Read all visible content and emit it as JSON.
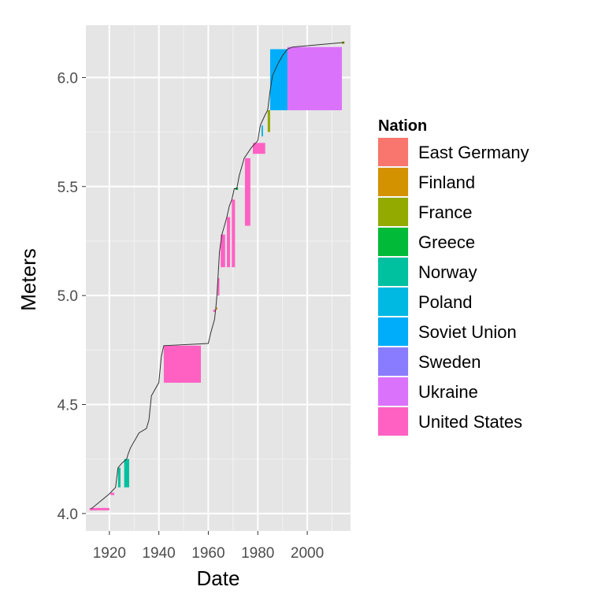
{
  "chart_data": {
    "type": "line",
    "xlabel": "Date",
    "ylabel": "Meters",
    "xlim": [
      1910.5,
      2017.5
    ],
    "ylim": [
      3.92,
      6.24
    ],
    "x_ticks": [
      1920,
      1940,
      1960,
      1980,
      2000
    ],
    "y_ticks": [
      4.0,
      4.5,
      5.0,
      5.5,
      6.0
    ],
    "grid": true,
    "legend_position": "right",
    "legend": {
      "title": "Nation",
      "entries": [
        {
          "name": "East Germany",
          "color": "#F8766D"
        },
        {
          "name": "Finland",
          "color": "#D39200"
        },
        {
          "name": "France",
          "color": "#93AA00"
        },
        {
          "name": "Greece",
          "color": "#00BA38"
        },
        {
          "name": "Norway",
          "color": "#00C19F"
        },
        {
          "name": "Poland",
          "color": "#00B9E3"
        },
        {
          "name": "Soviet Union",
          "color": "#00ADFA"
        },
        {
          "name": "Sweden",
          "color": "#8A7CFF"
        },
        {
          "name": "Ukraine",
          "color": "#DB72FB"
        },
        {
          "name": "United States",
          "color": "#FF61C3"
        }
      ]
    },
    "line": {
      "color": "#333333",
      "points": [
        [
          1912.5,
          4.02
        ],
        [
          1920.0,
          4.09
        ],
        [
          1922.5,
          4.12
        ],
        [
          1923.5,
          4.21
        ],
        [
          1925.0,
          4.23
        ],
        [
          1927.0,
          4.25
        ],
        [
          1927.5,
          4.27
        ],
        [
          1928.5,
          4.3
        ],
        [
          1932.0,
          4.37
        ],
        [
          1935.0,
          4.39
        ],
        [
          1936.0,
          4.43
        ],
        [
          1937.0,
          4.54
        ],
        [
          1940.0,
          4.6
        ],
        [
          1941.0,
          4.72
        ],
        [
          1942.0,
          4.77
        ],
        [
          1960.0,
          4.78
        ],
        [
          1961.0,
          4.83
        ],
        [
          1962.5,
          4.89
        ],
        [
          1963.0,
          4.94
        ],
        [
          1963.5,
          5.0
        ],
        [
          1964.5,
          5.2
        ],
        [
          1965.5,
          5.28
        ],
        [
          1966.5,
          5.32
        ],
        [
          1967.5,
          5.36
        ],
        [
          1968.5,
          5.41
        ],
        [
          1969.5,
          5.44
        ],
        [
          1970.5,
          5.49
        ],
        [
          1971.5,
          5.49
        ],
        [
          1972.5,
          5.55
        ],
        [
          1974.5,
          5.63
        ],
        [
          1977.5,
          5.68
        ],
        [
          1980.0,
          5.71
        ],
        [
          1981.0,
          5.78
        ],
        [
          1983.0,
          5.83
        ],
        [
          1984.0,
          5.85
        ],
        [
          1985.0,
          5.94
        ],
        [
          1986.0,
          6.01
        ],
        [
          1988.0,
          6.06
        ],
        [
          1990.0,
          6.1
        ],
        [
          1992.0,
          6.13
        ],
        [
          1994.0,
          6.14
        ],
        [
          2014.0,
          6.16
        ],
        [
          2015.0,
          6.16
        ]
      ]
    },
    "series": [
      {
        "nation": "United States",
        "segments": [
          [
            1912.0,
            1920.0,
            4.02,
            4.02
          ],
          [
            1920.5,
            1922.0,
            4.09,
            4.09
          ],
          [
            1942.0,
            1957.0,
            4.6,
            4.77
          ],
          [
            1962.0,
            1963.0,
            4.92,
            4.93
          ],
          [
            1963.8,
            1964.5,
            5.0,
            5.08
          ],
          [
            1965.0,
            1966.8,
            5.13,
            5.28
          ],
          [
            1967.5,
            1968.8,
            5.13,
            5.36
          ],
          [
            1969.5,
            1970.8,
            5.13,
            5.44
          ],
          [
            1974.8,
            1977.0,
            5.32,
            5.63
          ],
          [
            1978.0,
            1983.0,
            5.65,
            5.7
          ]
        ]
      },
      {
        "nation": "Norway",
        "segments": [
          [
            1923.5,
            1924.5,
            4.12,
            4.21
          ],
          [
            1926.0,
            1928.0,
            4.12,
            4.25
          ]
        ]
      },
      {
        "nation": "Finland",
        "segments": [
          [
            1963.0,
            1963.5,
            4.93,
            4.94
          ]
        ]
      },
      {
        "nation": "Greece",
        "segments": [
          [
            1971.0,
            1972.0,
            5.49,
            5.49
          ]
        ]
      },
      {
        "nation": "Poland",
        "segments": [
          [
            1981.5,
            1982.0,
            5.73,
            5.78
          ]
        ]
      },
      {
        "nation": "France",
        "segments": [
          [
            1984.0,
            1985.0,
            5.75,
            5.85
          ],
          [
            2014.0,
            2015.0,
            6.16,
            6.16
          ]
        ]
      },
      {
        "nation": "Soviet Union",
        "segments": [
          [
            1985.0,
            1992.0,
            5.85,
            6.13
          ]
        ]
      },
      {
        "nation": "Ukraine",
        "segments": [
          [
            1992.0,
            2014.0,
            5.85,
            6.14
          ]
        ]
      }
    ]
  }
}
